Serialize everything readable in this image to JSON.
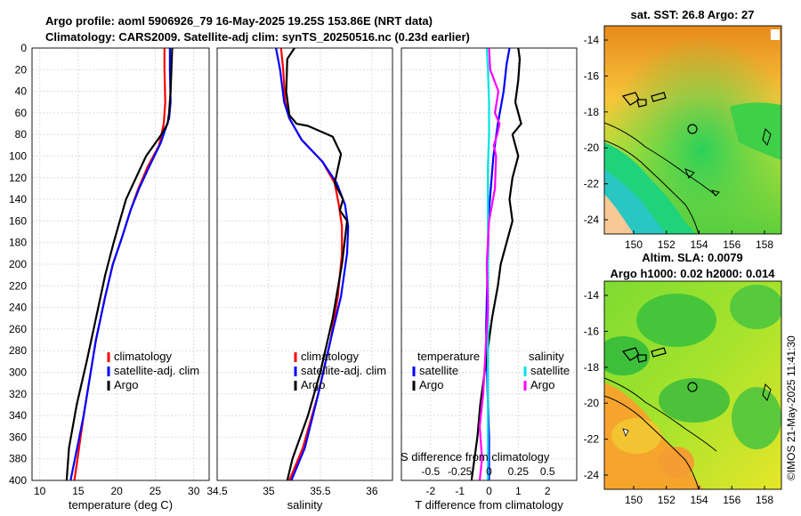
{
  "header": {
    "line1": "Argo profile: aoml 5906926_79 16-May-2025 19.25S 153.86E (NRT data)",
    "line2": "Climatology: CARS2009. Satellite-adj clim: synTS_20250516.nc (0.23d earlier)"
  },
  "depth_ticks": [
    "0",
    "20",
    "40",
    "60",
    "80",
    "100",
    "120",
    "140",
    "160",
    "180",
    "200",
    "220",
    "240",
    "260",
    "280",
    "300",
    "320",
    "340",
    "360",
    "380",
    "400"
  ],
  "colors": {
    "climatology": "#ff0000",
    "satellite": "#0000ff",
    "argo": "#000000",
    "sal_sat": "#00e5e5",
    "sal_diff": "#ff00ff"
  },
  "chart_data": [
    {
      "type": "line",
      "id": "temperature",
      "xlabel": "temperature (deg C)",
      "ylabel": "",
      "xlim": [
        9,
        32
      ],
      "ylim": [
        0,
        400
      ],
      "xticks": [
        "10",
        "15",
        "20",
        "25",
        "30"
      ],
      "xtick_values": [
        10,
        15,
        20,
        25,
        30
      ],
      "legend": [
        "climatology",
        "satellite-adj. clim",
        "Argo"
      ],
      "series": [
        {
          "name": "climatology",
          "color": "#ff0000",
          "x": [
            26.2,
            26.2,
            26.3,
            26.1,
            25.5,
            24.0,
            22.8,
            21.8,
            20.7,
            19.5,
            18.5,
            17.3,
            15.7,
            14.5
          ],
          "y": [
            0,
            20,
            50,
            70,
            90,
            110,
            130,
            150,
            175,
            200,
            230,
            270,
            340,
            400
          ]
        },
        {
          "name": "satellite-adj. clim",
          "color": "#0000ff",
          "x": [
            26.9,
            26.9,
            27.0,
            26.8,
            25.7,
            24.2,
            22.9,
            21.8,
            20.7,
            19.5,
            18.5,
            17.3,
            15.7,
            14.0
          ],
          "y": [
            0,
            20,
            50,
            65,
            88,
            110,
            130,
            150,
            175,
            200,
            230,
            270,
            340,
            400
          ]
        },
        {
          "name": "Argo",
          "color": "#000000",
          "x": [
            27.2,
            27.1,
            27.0,
            26.8,
            26.6,
            25.8,
            23.8,
            22.5,
            21.2,
            20.4,
            19.6,
            18.5,
            17.3,
            16.1,
            14.8,
            13.8,
            13.5
          ],
          "y": [
            0,
            20,
            40,
            60,
            70,
            80,
            100,
            120,
            140,
            160,
            180,
            210,
            250,
            290,
            330,
            370,
            400
          ]
        }
      ]
    },
    {
      "type": "line",
      "id": "salinity",
      "xlabel": "salinity",
      "ylabel": "",
      "xlim": [
        34.5,
        36.2
      ],
      "ylim": [
        0,
        400
      ],
      "xticks": [
        "34.5",
        "35",
        "35.5",
        "36"
      ],
      "xtick_values": [
        34.5,
        35.0,
        35.5,
        36.0
      ],
      "legend": [
        "climatology",
        "satellite-adj. clim",
        "Argo"
      ],
      "series": [
        {
          "name": "climatology",
          "color": "#ff0000",
          "x": [
            35.12,
            35.14,
            35.16,
            35.2,
            35.32,
            35.52,
            35.64,
            35.68,
            35.71,
            35.71,
            35.67,
            35.6,
            35.48,
            35.33,
            35.2
          ],
          "y": [
            0,
            20,
            50,
            65,
            85,
            105,
            125,
            145,
            165,
            190,
            230,
            270,
            320,
            370,
            400
          ]
        },
        {
          "name": "satellite-adj. clim",
          "color": "#0000ff",
          "x": [
            35.07,
            35.11,
            35.15,
            35.2,
            35.32,
            35.52,
            35.66,
            35.74,
            35.77,
            35.76,
            35.7,
            35.6,
            35.48,
            35.35,
            35.22
          ],
          "y": [
            0,
            20,
            50,
            65,
            85,
            105,
            125,
            145,
            165,
            190,
            230,
            270,
            320,
            370,
            400
          ]
        },
        {
          "name": "Argo",
          "color": "#000000",
          "x": [
            35.25,
            35.18,
            35.17,
            35.2,
            35.27,
            35.38,
            35.62,
            35.7,
            35.64,
            35.72,
            35.69,
            35.76,
            35.71,
            35.62,
            35.5,
            35.38,
            35.23,
            35.18
          ],
          "y": [
            0,
            10,
            40,
            62,
            70,
            72,
            82,
            98,
            125,
            140,
            150,
            160,
            200,
            250,
            300,
            340,
            380,
            400
          ]
        }
      ]
    },
    {
      "type": "line",
      "id": "difference",
      "xlabel": "T difference from climatology",
      "ylabel": "",
      "xlim": [
        -3,
        3
      ],
      "ylim": [
        0,
        400
      ],
      "xticks": [
        "-2",
        "-1",
        "0",
        "1",
        "2"
      ],
      "xtick_values": [
        -2,
        -1,
        0,
        1,
        2
      ],
      "top_xlabel": "S difference from climatology",
      "top_xticks": [
        "-0.5",
        "-0.25",
        "0",
        "0.25",
        "0.5"
      ],
      "top_xtick_values": [
        -0.5,
        -0.25,
        0,
        0.25,
        0.5
      ],
      "legend_temperature_title": "temperature",
      "legend_salinity_title": "salinity",
      "legend_temperature": [
        "satellite",
        "Argo"
      ],
      "legend_salinity": [
        "satellite",
        "Argo"
      ],
      "series": [
        {
          "name": "temperature satellite",
          "color": "#0000ff",
          "x": [
            0.7,
            0.6,
            0.5,
            0.3,
            0.15,
            0.0,
            -0.05,
            -0.1,
            -0.05,
            0.0,
            0.0,
            0.0
          ],
          "y": [
            0,
            15,
            40,
            70,
            100,
            150,
            200,
            260,
            320,
            360,
            380,
            400
          ]
        },
        {
          "name": "temperature Argo",
          "color": "#000000",
          "x": [
            1.0,
            1.05,
            1.0,
            0.9,
            1.1,
            0.8,
            1.0,
            0.8,
            0.7,
            0.8,
            0.6,
            0.4,
            0.3,
            0.1,
            -0.1,
            -0.3,
            -0.4,
            -0.5,
            -0.6
          ],
          "y": [
            0,
            10,
            30,
            50,
            70,
            80,
            100,
            120,
            140,
            160,
            180,
            200,
            220,
            250,
            290,
            330,
            360,
            380,
            400
          ]
        },
        {
          "name": "salinity satellite",
          "color": "#00e5e5",
          "x": [
            -0.02,
            -0.01,
            0.0,
            0.0,
            -0.01,
            -0.01,
            -0.01,
            -0.01,
            -0.01,
            -0.01,
            -0.01,
            -0.01
          ],
          "y": [
            0,
            20,
            50,
            80,
            110,
            150,
            200,
            250,
            300,
            340,
            370,
            400
          ]
        },
        {
          "name": "salinity Argo",
          "color": "#ff00ff",
          "x": [
            0.0,
            0.01,
            0.08,
            0.05,
            0.09,
            0.07,
            0.04,
            0.06,
            0.05,
            0.0,
            -0.01,
            -0.02,
            -0.01,
            -0.03,
            -0.05,
            -0.08,
            -0.06,
            -0.08
          ],
          "y": [
            0,
            20,
            40,
            60,
            70,
            80,
            90,
            100,
            130,
            160,
            180,
            200,
            240,
            280,
            320,
            350,
            380,
            400
          ]
        }
      ]
    }
  ],
  "maps": {
    "sst": {
      "title": "sat. SST: 26.8 Argo: 27",
      "yticks": [
        "-14",
        "-16",
        "-18",
        "-20",
        "-22",
        "-24"
      ],
      "xticks": [
        "150",
        "152",
        "154",
        "156",
        "158"
      ]
    },
    "sla": {
      "title_line1": "Altim. SLA: 0.0079",
      "title_line2": "Argo h1000: 0.02 h2000: 0.014",
      "yticks": [
        "-14",
        "-16",
        "-18",
        "-20",
        "-22",
        "-24"
      ],
      "xticks": [
        "150",
        "152",
        "154",
        "156",
        "158"
      ]
    }
  },
  "watermark": "©IMOS 21-May-2025 11:41:30"
}
